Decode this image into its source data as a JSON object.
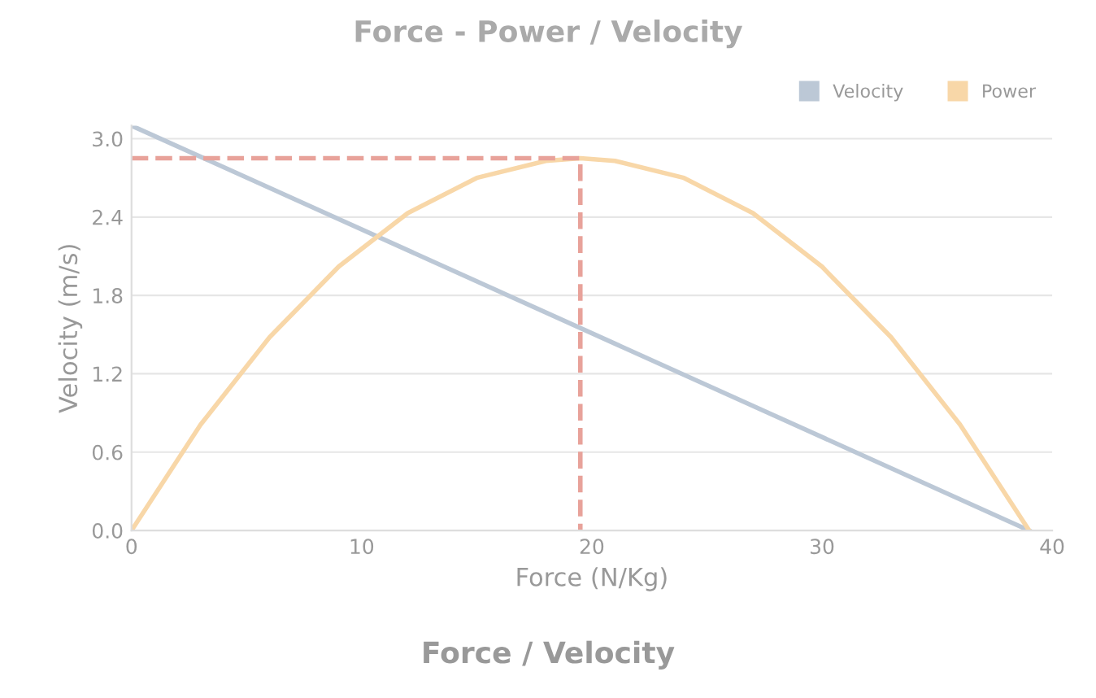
{
  "chart_data": {
    "type": "line",
    "title": "Force - Power / Velocity",
    "xlabel": "Force (N/Kg)",
    "ylabel": "Velocity (m/s)",
    "annotations": [
      "Force / Velocity"
    ],
    "xlim": [
      0,
      40
    ],
    "xticks": [
      0,
      10,
      20,
      30,
      40
    ],
    "ylim": [
      0,
      3.1
    ],
    "yticks": [
      {
        "value": 0,
        "label": "0.0"
      },
      0.6,
      1.2,
      1.8,
      2.4,
      {
        "value": 3.0,
        "label": "3.0"
      }
    ],
    "grid": "y",
    "legend": "top right",
    "marker": "none",
    "series": [
      {
        "name": "Velocity",
        "color": "#bcc8d6",
        "x": [
          0,
          39
        ],
        "values": [
          3.1,
          0
        ]
      },
      {
        "name": "Power",
        "color": "#f8d7a8",
        "x": [
          0,
          3,
          6,
          9,
          12,
          15,
          18,
          19.5,
          21,
          24,
          27,
          30,
          33,
          36,
          39
        ],
        "values": [
          0,
          0.81,
          1.48,
          2.02,
          2.43,
          2.7,
          2.83,
          2.85,
          2.83,
          2.7,
          2.43,
          2.02,
          1.48,
          0.81,
          0
        ]
      },
      {
        "color": "#e8a29a",
        "line_style": "dashed",
        "x": [
          0,
          19.5,
          19.5
        ],
        "values": [
          2.85,
          2.85,
          0
        ]
      }
    ]
  }
}
